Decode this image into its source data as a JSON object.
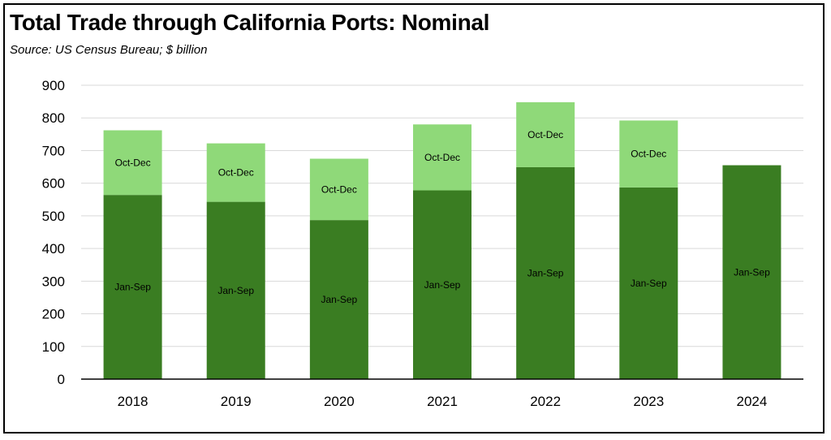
{
  "chart_data": {
    "type": "bar",
    "stacked": true,
    "title": "Total Trade through California Ports:  Nominal",
    "subtitle": "Source:  US Census Bureau; $ billion",
    "xlabel": "",
    "ylabel": "",
    "ylim": [
      0,
      900
    ],
    "yticks": [
      0,
      100,
      200,
      300,
      400,
      500,
      600,
      700,
      800,
      900
    ],
    "grid": true,
    "categories": [
      "2018",
      "2019",
      "2020",
      "2021",
      "2022",
      "2023",
      "2024"
    ],
    "series": [
      {
        "name": "Jan-Sep",
        "color": "#3a7d22",
        "values": [
          564,
          543,
          487,
          578,
          649,
          587,
          655
        ]
      },
      {
        "name": "Oct-Dec",
        "color": "#8fd979",
        "values": [
          198,
          179,
          188,
          202,
          199,
          205,
          null
        ]
      }
    ]
  }
}
